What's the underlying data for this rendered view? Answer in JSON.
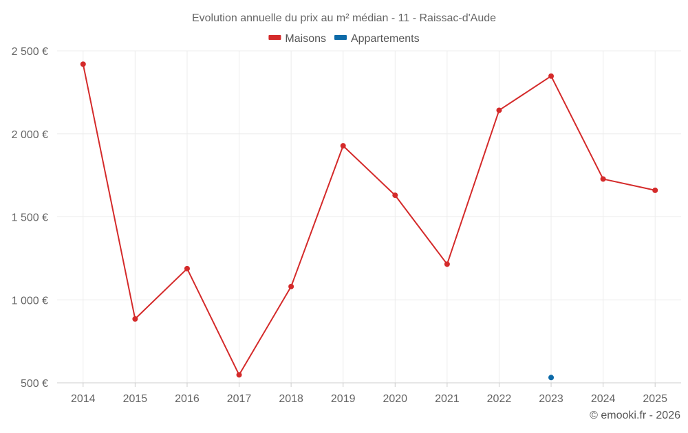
{
  "chart_data": {
    "type": "line",
    "title": "Evolution annuelle du prix au m² médian - 11 - Raissac-d'Aude",
    "categories": [
      "2014",
      "2015",
      "2016",
      "2017",
      "2018",
      "2019",
      "2020",
      "2021",
      "2022",
      "2023",
      "2024",
      "2025"
    ],
    "ylim": [
      500,
      2500
    ],
    "yticks": [
      500,
      1000,
      1500,
      2000,
      2500
    ],
    "ytick_labels": [
      "500 €",
      "1 000 €",
      "1 500 €",
      "2 000 €",
      "2 500 €"
    ],
    "legend_position": "top-center",
    "grid": true,
    "series": [
      {
        "name": "Maisons",
        "color": "#d42a2a",
        "values": [
          2420,
          885,
          1188,
          548,
          1080,
          1928,
          1630,
          1215,
          2142,
          2348,
          1728,
          1660
        ]
      },
      {
        "name": "Appartements",
        "color": "#0d6aa8",
        "values": [
          null,
          null,
          null,
          null,
          null,
          null,
          null,
          null,
          null,
          532,
          null,
          null
        ]
      }
    ],
    "credits": "© emooki.fr - 2026"
  }
}
